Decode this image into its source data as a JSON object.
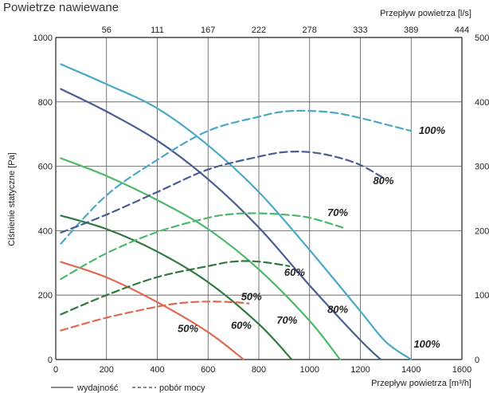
{
  "chart_data": {
    "type": "line",
    "title": "Powietrze nawiewane",
    "ylabel": "Ciśnienie statyczne [Pa]",
    "xlabel": "Przepływ powietrza [m³/h]",
    "x2label": "Przepływ powietrza [l/s]",
    "xlim": [
      0,
      1600
    ],
    "ylim": [
      0,
      1000
    ],
    "y2lim": [
      0,
      500
    ],
    "x_ticks": [
      "0",
      "200",
      "400",
      "600",
      "800",
      "1000",
      "1200",
      "1400",
      "1600"
    ],
    "y_ticks": [
      "0",
      "200",
      "400",
      "600",
      "800",
      "1000"
    ],
    "x2_ticks": [
      "56",
      "111",
      "167",
      "222",
      "278",
      "333",
      "389",
      "444"
    ],
    "y2_ticks": [
      "0",
      "100",
      "200",
      "300",
      "400",
      "500"
    ],
    "grid": true,
    "legend": {
      "solid": "wydajność",
      "dashed": "pobór mocy"
    },
    "series": [
      {
        "name": "100%",
        "kind": "solid",
        "color": "#4aa8c8",
        "x": [
          20,
          200,
          400,
          600,
          800,
          1000,
          1200,
          1300,
          1400
        ],
        "y": [
          917,
          855,
          780,
          665,
          520,
          340,
          150,
          55,
          0
        ]
      },
      {
        "name": "80%",
        "kind": "solid",
        "color": "#4a5d93",
        "x": [
          20,
          200,
          400,
          600,
          800,
          1000,
          1200,
          1280
        ],
        "y": [
          840,
          770,
          680,
          560,
          410,
          230,
          60,
          0
        ]
      },
      {
        "name": "70%",
        "kind": "solid",
        "color": "#4cb86a",
        "x": [
          20,
          200,
          400,
          600,
          800,
          1000,
          1120
        ],
        "y": [
          625,
          570,
          495,
          405,
          280,
          120,
          0
        ]
      },
      {
        "name": "60%",
        "kind": "solid",
        "color": "#2e7a3e",
        "x": [
          20,
          200,
          400,
          600,
          800,
          930
        ],
        "y": [
          447,
          405,
          335,
          240,
          110,
          0
        ]
      },
      {
        "name": "50%",
        "kind": "solid",
        "color": "#e06a50",
        "x": [
          20,
          200,
          400,
          600,
          740
        ],
        "y": [
          303,
          255,
          178,
          85,
          0
        ]
      },
      {
        "name": "100%",
        "kind": "dashed",
        "color": "#4aa8c8",
        "x": [
          20,
          200,
          400,
          600,
          800,
          900,
          1000,
          1100,
          1200,
          1300,
          1400
        ],
        "y2": [
          180,
          255,
          310,
          355,
          377,
          385,
          386,
          383,
          375,
          365,
          355
        ]
      },
      {
        "name": "80%",
        "kind": "dashed",
        "color": "#4a5d93",
        "x": [
          20,
          200,
          400,
          600,
          800,
          900,
          1000,
          1100,
          1200,
          1290
        ],
        "y2": [
          197,
          225,
          260,
          295,
          315,
          322,
          322,
          315,
          302,
          282
        ]
      },
      {
        "name": "70%",
        "kind": "dashed",
        "color": "#4cb86a",
        "x": [
          20,
          200,
          400,
          600,
          700,
          800,
          900,
          1000,
          1130
        ],
        "y2": [
          125,
          165,
          198,
          220,
          226,
          227,
          225,
          220,
          205
        ]
      },
      {
        "name": "60%",
        "kind": "dashed",
        "color": "#2e7a3e",
        "x": [
          20,
          200,
          400,
          600,
          700,
          800,
          920
        ],
        "y2": [
          70,
          100,
          128,
          145,
          152,
          152,
          145
        ]
      },
      {
        "name": "50%",
        "kind": "dashed",
        "color": "#e06a50",
        "x": [
          20,
          200,
          400,
          500,
          600,
          700,
          760
        ],
        "y2": [
          45,
          65,
          82,
          88,
          90,
          89,
          87
        ]
      }
    ],
    "annotations": [
      {
        "text": "100%",
        "x": 1410,
        "y": 37
      },
      {
        "text": "80%",
        "x": 1070,
        "y": 145
      },
      {
        "text": "70%",
        "x": 870,
        "y": 112
      },
      {
        "text": "60%",
        "x": 690,
        "y": 95
      },
      {
        "text": "50%",
        "x": 480,
        "y": 85
      },
      {
        "text": "100%",
        "x": 1430,
        "y": 700
      },
      {
        "text": "80%",
        "x": 1250,
        "y": 545
      },
      {
        "text": "70%",
        "x": 1070,
        "y": 445
      },
      {
        "text": "60%",
        "x": 900,
        "y": 260
      },
      {
        "text": "50%",
        "x": 730,
        "y": 185
      }
    ]
  }
}
